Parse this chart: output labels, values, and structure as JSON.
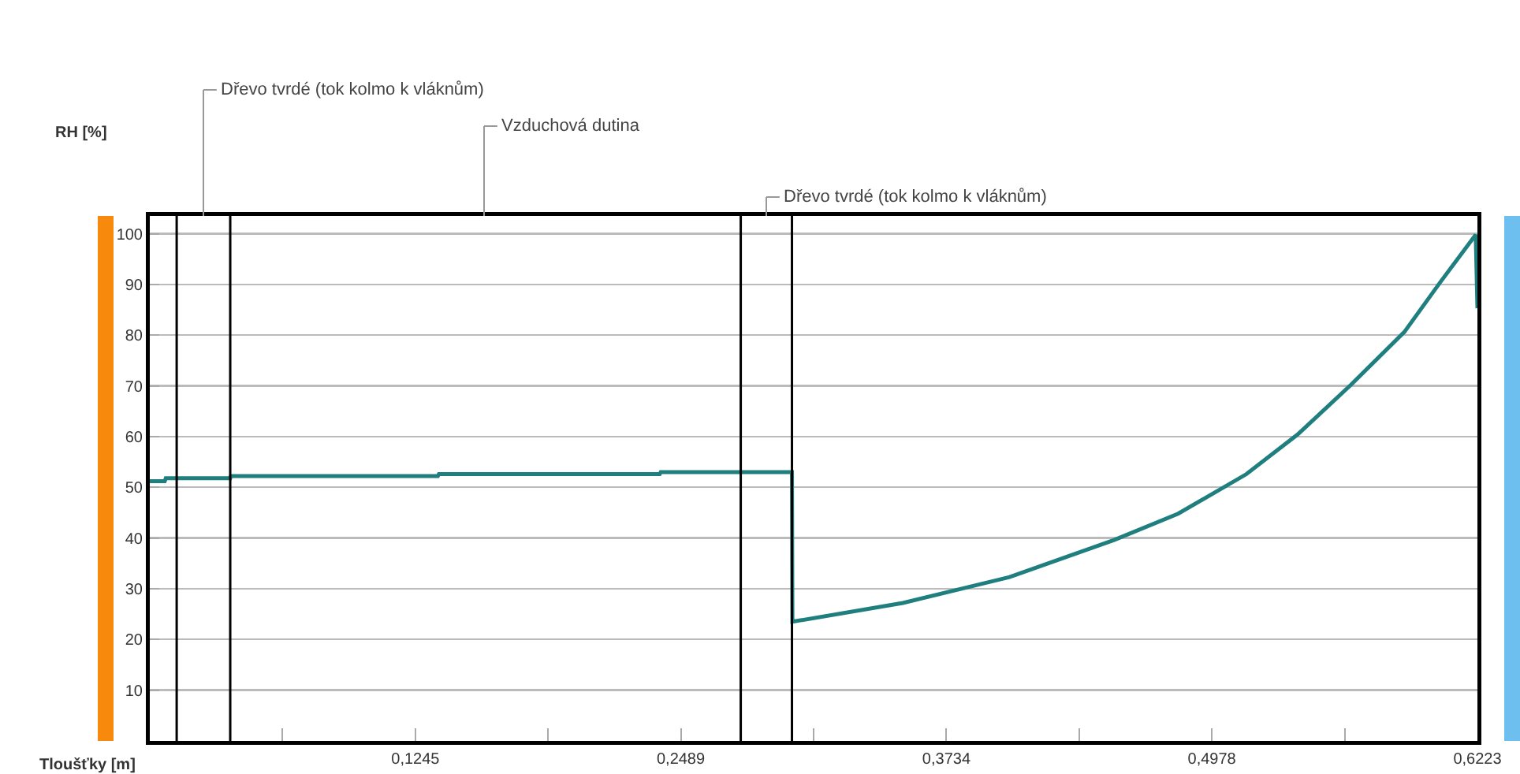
{
  "chart_data": {
    "type": "line",
    "xlabel": "Tloušťky [m]",
    "ylabel": "RH [%]",
    "x": [
      0,
      0.007,
      0.0075,
      0.0377,
      0.038,
      0.135,
      0.1355,
      0.239,
      0.2395,
      0.301,
      0.3012,
      0.353,
      0.403,
      0.452,
      0.482,
      0.514,
      0.538,
      0.563,
      0.588,
      0.605,
      0.6215,
      0.6223
    ],
    "series": [
      {
        "color": "#1f7f7f",
        "values": [
          51.2,
          51.2,
          51.8,
          51.8,
          52.2,
          52.2,
          52.6,
          52.6,
          53.0,
          53.0,
          23.5,
          27.2,
          32.3,
          39.6,
          44.8,
          52.6,
          60.4,
          70.2,
          80.6,
          90.5,
          99.8,
          85.3
        ]
      }
    ],
    "xlim": [
      0,
      0.6223
    ],
    "ylim": [
      0,
      103.5
    ],
    "xticks": [
      {
        "value": 0.06225,
        "label": null
      },
      {
        "value": 0.1245,
        "label": "0,1245"
      },
      {
        "value": 0.18675,
        "label": null
      },
      {
        "value": 0.2489,
        "label": "0,2489"
      },
      {
        "value": 0.31115,
        "label": null
      },
      {
        "value": 0.3734,
        "label": "0,3734"
      },
      {
        "value": 0.43565,
        "label": null
      },
      {
        "value": 0.4978,
        "label": "0,4978"
      },
      {
        "value": 0.56005,
        "label": null
      },
      {
        "value": 0.6223,
        "label": "0,6223"
      }
    ],
    "yticks": [
      10,
      20,
      30,
      40,
      50,
      60,
      70,
      80,
      90,
      100
    ],
    "grid": "y",
    "marker": "none",
    "line_style": "solid",
    "ref_lines": [
      {
        "axis": "x",
        "value": 0.0126,
        "color": "#000000"
      },
      {
        "axis": "x",
        "value": 0.0377,
        "color": "#000000"
      },
      {
        "axis": "x",
        "value": 0.277,
        "color": "#000000"
      },
      {
        "axis": "x",
        "value": 0.301,
        "color": "#000000"
      }
    ],
    "annotations": [
      "Dřevo tvrdé (tok kolmo k vláknům)",
      "Vzduchová dutina",
      "Dřevo tvrdé (tok kolmo k vláknům)"
    ]
  }
}
